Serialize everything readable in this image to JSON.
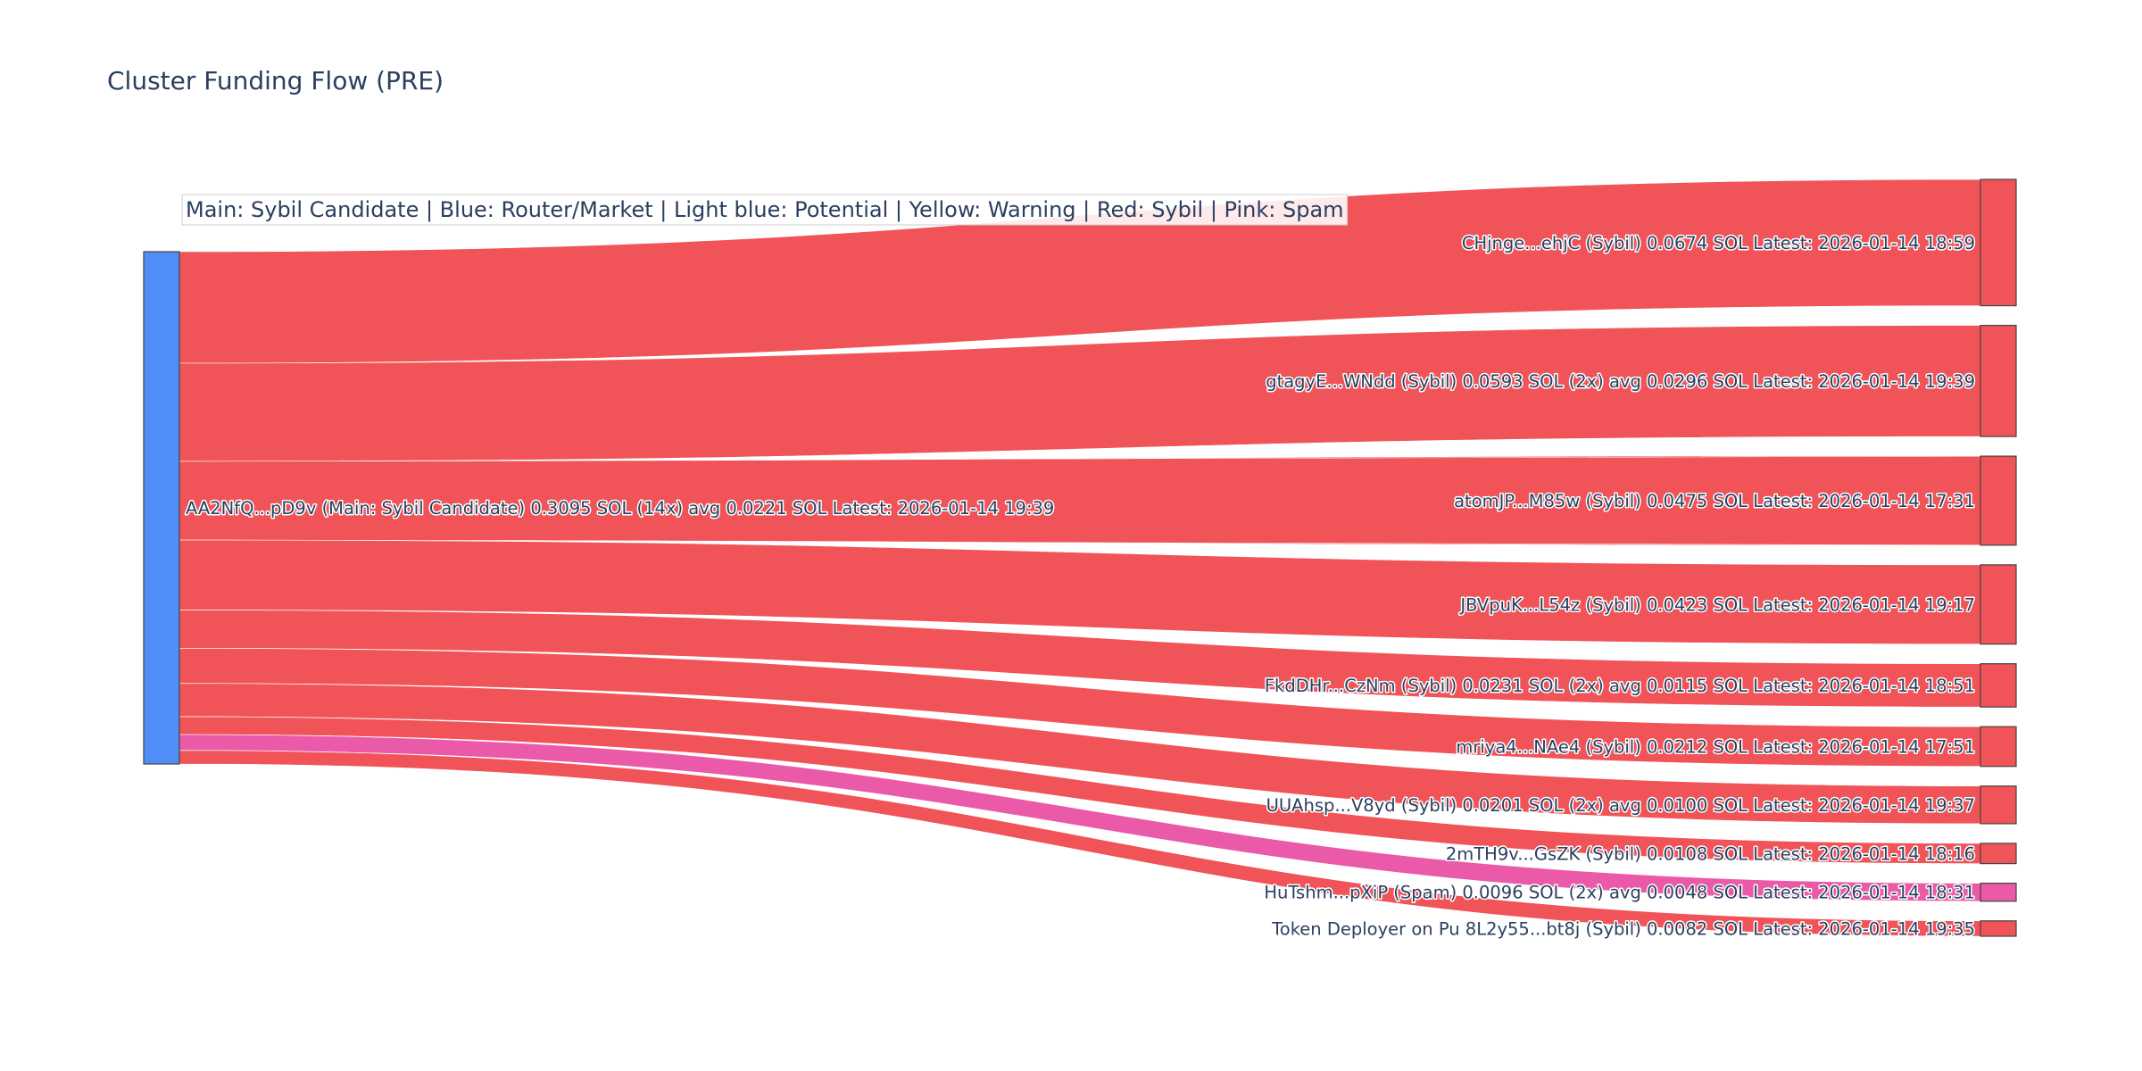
{
  "chart_data": {
    "type": "sankey",
    "title": "Cluster Funding Flow (PRE)",
    "legend_note": "Main: Sybil Candidate  |  Blue: Router/Market | Light blue: Potential | Yellow: Warning | Red: Sybil | Pink: Spam",
    "source": {
      "label": "AA2NfQ...pD9v (Main: Sybil Candidate) 0.3095 SOL (14x) avg 0.0221 SOL Latest: 2026-01-14 19:39",
      "value": 0.3095,
      "color": "#4f8ef7"
    },
    "targets": [
      {
        "label": "CHjnge...ehjC (Sybil) 0.0674 SOL Latest: 2026-01-14 18:59",
        "value": 0.0674,
        "category": "Sybil"
      },
      {
        "label": "gtagyE...WNdd (Sybil) 0.0593 SOL (2x) avg 0.0296 SOL Latest: 2026-01-14 19:39",
        "value": 0.0593,
        "category": "Sybil"
      },
      {
        "label": "atomJP...M85w (Sybil) 0.0475 SOL Latest: 2026-01-14 17:31",
        "value": 0.0475,
        "category": "Sybil"
      },
      {
        "label": "JBVpuK...L54z (Sybil) 0.0423 SOL Latest: 2026-01-14 19:17",
        "value": 0.0423,
        "category": "Sybil"
      },
      {
        "label": "FkdDHr...CzNm (Sybil) 0.0231 SOL (2x) avg 0.0115 SOL Latest: 2026-01-14 18:51",
        "value": 0.0231,
        "category": "Sybil"
      },
      {
        "label": "mriya4...NAe4 (Sybil) 0.0212 SOL Latest: 2026-01-14 17:51",
        "value": 0.0212,
        "category": "Sybil"
      },
      {
        "label": "UUAhsp...V8yd (Sybil) 0.0201 SOL (2x) avg 0.0100 SOL Latest: 2026-01-14 19:37",
        "value": 0.0201,
        "category": "Sybil"
      },
      {
        "label": "2mTH9v...GsZK (Sybil) 0.0108 SOL Latest: 2026-01-14 18:16",
        "value": 0.0108,
        "category": "Sybil"
      },
      {
        "label": "HuTshm...pXiP (Spam) 0.0096 SOL (2x) avg 0.0048 SOL Latest: 2026-01-14 18:31",
        "value": 0.0096,
        "category": "Spam"
      },
      {
        "label": "Token Deployer on Pu 8L2y55...bt8j (Sybil) 0.0082 SOL Latest: 2026-01-14 19:35",
        "value": 0.0082,
        "category": "Sybil"
      }
    ],
    "colors": {
      "Sybil": "#f05458",
      "Spam": "#ea5aa8",
      "node_border": "#444444"
    }
  }
}
